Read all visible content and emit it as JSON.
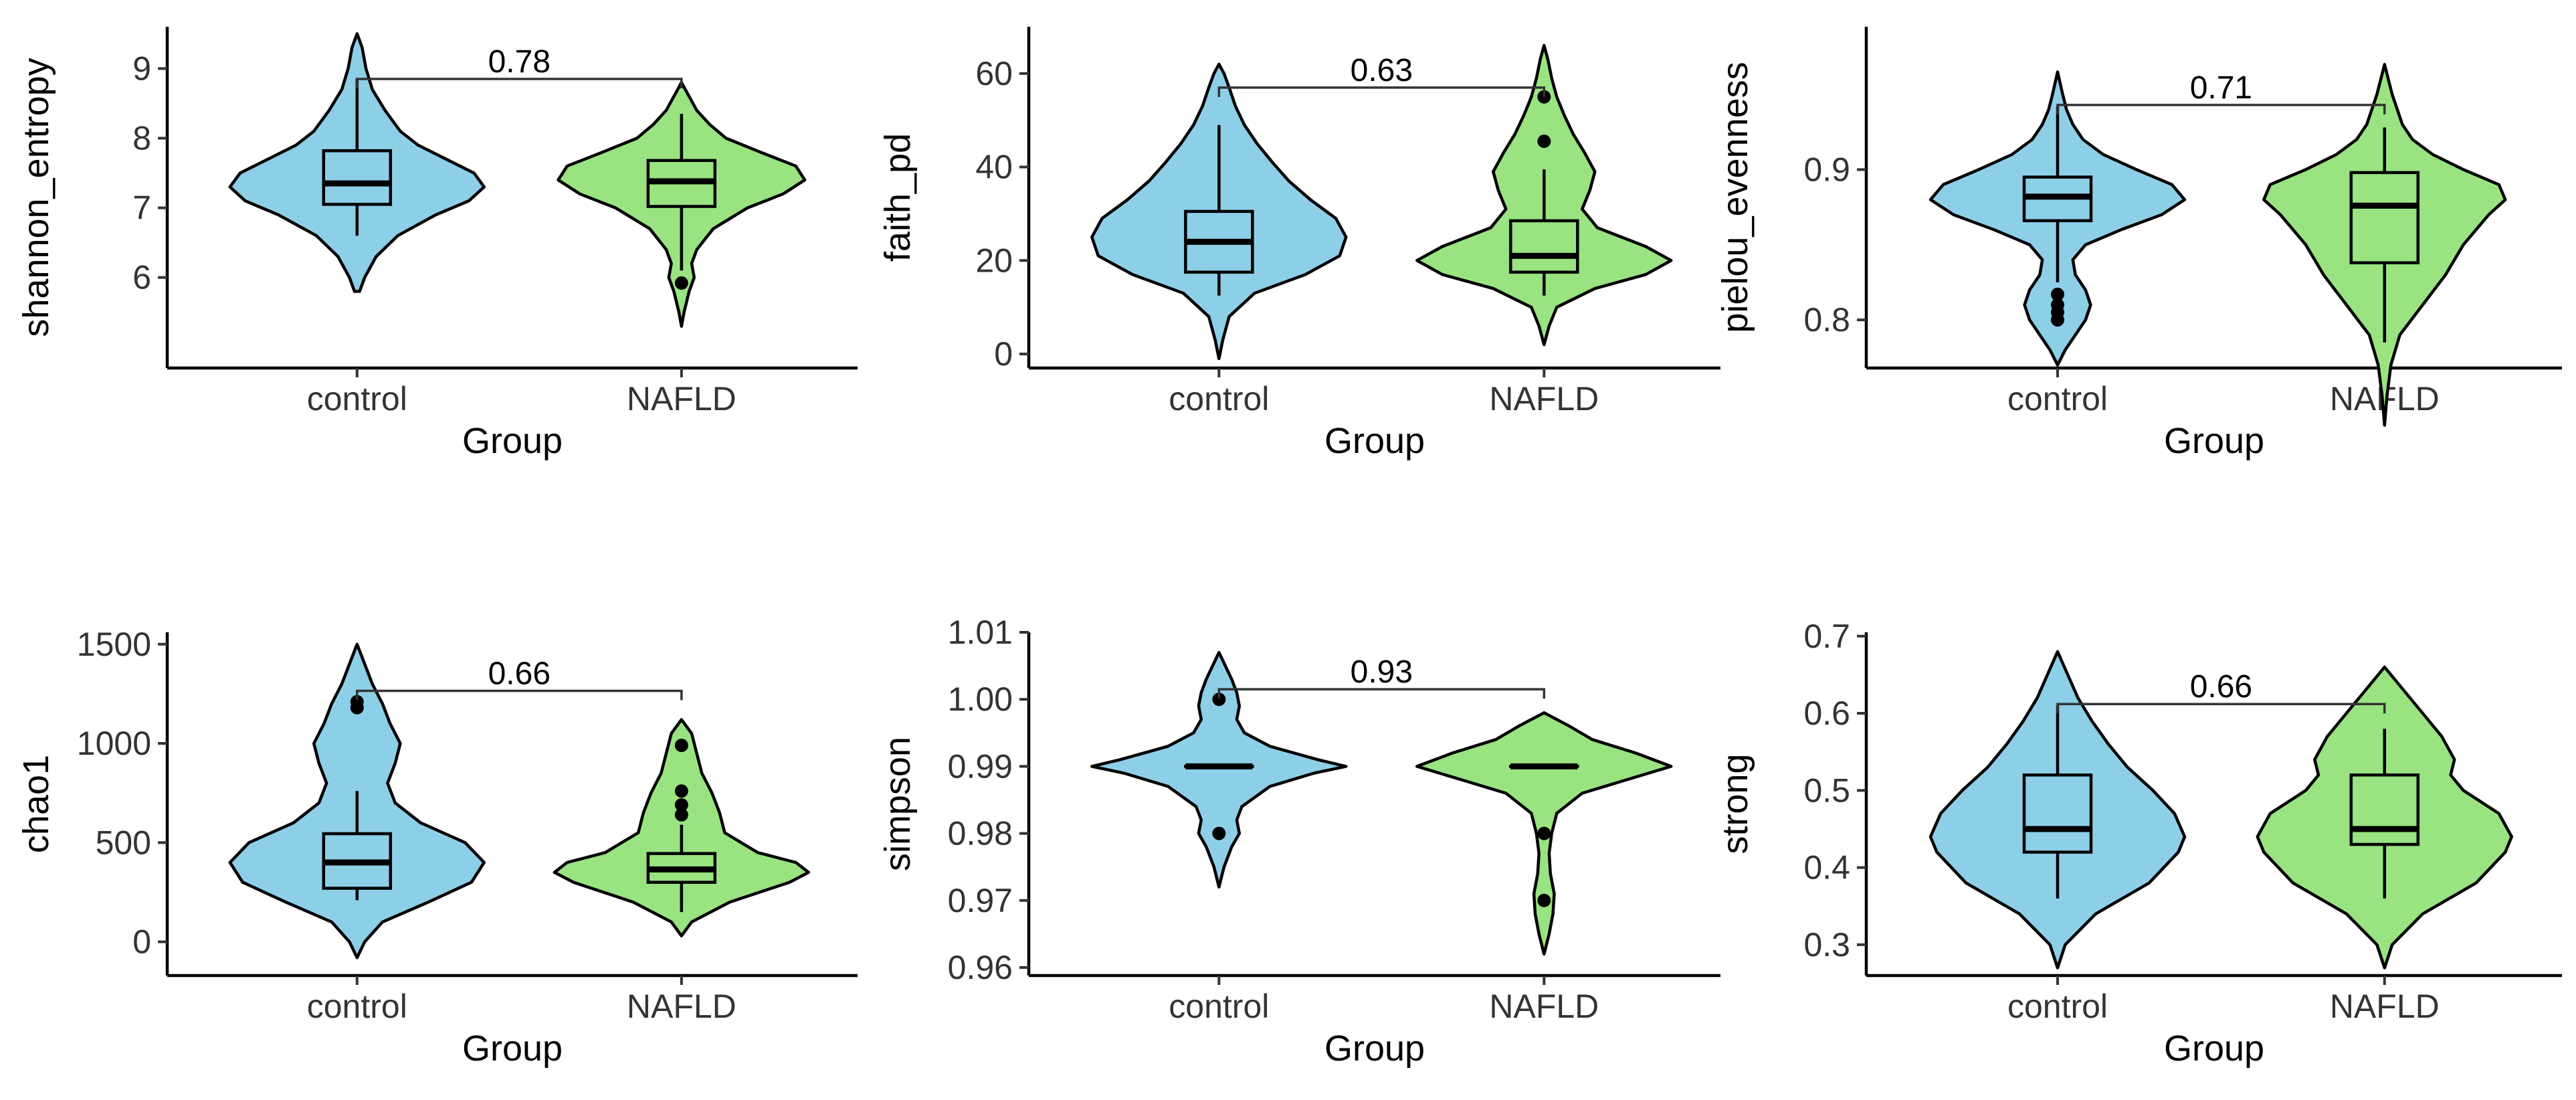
{
  "colors": {
    "control": "#8ecfe8",
    "NAFLD": "#99e481"
  },
  "chart_data": [
    {
      "type": "violin",
      "ylabel": "shannon_entropy",
      "xlabel": "Group",
      "categories": [
        "control",
        "NAFLD"
      ],
      "ylim": [
        4.7,
        9.6
      ],
      "yticks": [
        6,
        7,
        8,
        9
      ],
      "ytick_labels": [
        "6",
        "7",
        "8",
        "9"
      ],
      "pvalue": "0.78",
      "bracket_y": 8.85,
      "groups": [
        {
          "name": "control",
          "violin": [
            [
              5.8,
              0.02
            ],
            [
              6.0,
              0.06
            ],
            [
              6.3,
              0.15
            ],
            [
              6.6,
              0.32
            ],
            [
              6.9,
              0.62
            ],
            [
              7.1,
              0.88
            ],
            [
              7.3,
              1.0
            ],
            [
              7.5,
              0.92
            ],
            [
              7.7,
              0.7
            ],
            [
              7.9,
              0.48
            ],
            [
              8.1,
              0.34
            ],
            [
              8.4,
              0.22
            ],
            [
              8.7,
              0.12
            ],
            [
              9.0,
              0.07
            ],
            [
              9.3,
              0.04
            ],
            [
              9.5,
              0.0
            ]
          ],
          "box": {
            "min": 6.6,
            "q1": 7.05,
            "median": 7.35,
            "q3": 7.82,
            "max": 8.85
          },
          "outliers": []
        },
        {
          "name": "NAFLD",
          "violin": [
            [
              5.3,
              0.0
            ],
            [
              5.5,
              0.02
            ],
            [
              5.8,
              0.06
            ],
            [
              6.0,
              0.1
            ],
            [
              6.2,
              0.08
            ],
            [
              6.4,
              0.12
            ],
            [
              6.7,
              0.25
            ],
            [
              7.0,
              0.52
            ],
            [
              7.2,
              0.8
            ],
            [
              7.4,
              0.97
            ],
            [
              7.6,
              0.9
            ],
            [
              7.8,
              0.62
            ],
            [
              8.0,
              0.35
            ],
            [
              8.2,
              0.22
            ],
            [
              8.4,
              0.12
            ],
            [
              8.6,
              0.06
            ],
            [
              8.8,
              0.0
            ]
          ],
          "box": {
            "min": 6.1,
            "q1": 7.02,
            "median": 7.38,
            "q3": 7.68,
            "max": 8.35
          },
          "outliers": [
            5.92
          ]
        }
      ]
    },
    {
      "type": "violin",
      "ylabel": "faith_pd",
      "xlabel": "Group",
      "categories": [
        "control",
        "NAFLD"
      ],
      "ylim": [
        -3,
        70
      ],
      "yticks": [
        0,
        20,
        40,
        60
      ],
      "ytick_labels": [
        "0",
        "20",
        "40",
        "60"
      ],
      "pvalue": "0.63",
      "bracket_y": 57,
      "groups": [
        {
          "name": "control",
          "violin": [
            [
              -1,
              0.0
            ],
            [
              3,
              0.03
            ],
            [
              8,
              0.08
            ],
            [
              13,
              0.28
            ],
            [
              17,
              0.68
            ],
            [
              21,
              0.95
            ],
            [
              25,
              1.0
            ],
            [
              29,
              0.92
            ],
            [
              33,
              0.72
            ],
            [
              37,
              0.55
            ],
            [
              41,
              0.42
            ],
            [
              45,
              0.3
            ],
            [
              49,
              0.2
            ],
            [
              53,
              0.13
            ],
            [
              57,
              0.08
            ],
            [
              60,
              0.04
            ],
            [
              62,
              0.0
            ]
          ],
          "box": {
            "min": 12.5,
            "q1": 17.5,
            "median": 24.0,
            "q3": 30.5,
            "max": 49.0
          },
          "outliers": []
        },
        {
          "name": "NAFLD",
          "violin": [
            [
              2,
              0.0
            ],
            [
              6,
              0.04
            ],
            [
              10,
              0.1
            ],
            [
              14,
              0.4
            ],
            [
              17,
              0.8
            ],
            [
              20,
              1.0
            ],
            [
              23,
              0.8
            ],
            [
              27,
              0.42
            ],
            [
              31,
              0.3
            ],
            [
              35,
              0.36
            ],
            [
              39,
              0.4
            ],
            [
              43,
              0.32
            ],
            [
              47,
              0.23
            ],
            [
              51,
              0.16
            ],
            [
              55,
              0.1
            ],
            [
              59,
              0.06
            ],
            [
              63,
              0.03
            ],
            [
              66,
              0.0
            ]
          ],
          "box": {
            "min": 12.5,
            "q1": 17.5,
            "median": 21.0,
            "q3": 28.5,
            "max": 39.5
          },
          "outliers": [
            45.5,
            55.0
          ]
        }
      ]
    },
    {
      "type": "violin",
      "ylabel": "pielou_evenness",
      "xlabel": "Group",
      "categories": [
        "control",
        "NAFLD"
      ],
      "ylim": [
        0.768,
        0.995
      ],
      "yticks": [
        0.8,
        0.9
      ],
      "ytick_labels": [
        "0.8",
        "0.9"
      ],
      "pvalue": "0.71",
      "bracket_y": 0.943,
      "groups": [
        {
          "name": "control",
          "violin": [
            [
              0.77,
              0.0
            ],
            [
              0.78,
              0.06
            ],
            [
              0.79,
              0.14
            ],
            [
              0.8,
              0.22
            ],
            [
              0.81,
              0.26
            ],
            [
              0.82,
              0.22
            ],
            [
              0.83,
              0.14
            ],
            [
              0.84,
              0.12
            ],
            [
              0.85,
              0.22
            ],
            [
              0.86,
              0.5
            ],
            [
              0.87,
              0.82
            ],
            [
              0.88,
              1.0
            ],
            [
              0.89,
              0.9
            ],
            [
              0.9,
              0.62
            ],
            [
              0.91,
              0.36
            ],
            [
              0.92,
              0.2
            ],
            [
              0.93,
              0.12
            ],
            [
              0.94,
              0.07
            ],
            [
              0.95,
              0.04
            ],
            [
              0.965,
              0.0
            ]
          ],
          "box": {
            "min": 0.825,
            "q1": 0.866,
            "median": 0.882,
            "q3": 0.895,
            "max": 0.942
          },
          "outliers": [
            0.8,
            0.805,
            0.81,
            0.817
          ]
        },
        {
          "name": "NAFLD",
          "violin": [
            [
              0.73,
              0.0
            ],
            [
              0.75,
              0.02
            ],
            [
              0.77,
              0.05
            ],
            [
              0.79,
              0.12
            ],
            [
              0.81,
              0.3
            ],
            [
              0.83,
              0.48
            ],
            [
              0.85,
              0.62
            ],
            [
              0.87,
              0.82
            ],
            [
              0.88,
              0.95
            ],
            [
              0.89,
              0.9
            ],
            [
              0.9,
              0.62
            ],
            [
              0.91,
              0.38
            ],
            [
              0.92,
              0.22
            ],
            [
              0.93,
              0.14
            ],
            [
              0.95,
              0.06
            ],
            [
              0.97,
              0.0
            ]
          ],
          "box": {
            "min": 0.785,
            "q1": 0.838,
            "median": 0.876,
            "q3": 0.898,
            "max": 0.928
          },
          "outliers": []
        }
      ]
    },
    {
      "type": "violin",
      "ylabel": "chao1",
      "xlabel": "Group",
      "categories": [
        "control",
        "NAFLD"
      ],
      "ylim": [
        -170,
        1560
      ],
      "yticks": [
        0,
        500,
        1000,
        1500
      ],
      "ytick_labels": [
        "0",
        "500",
        "1000",
        "1500"
      ],
      "pvalue": "0.66",
      "bracket_y": 1265,
      "groups": [
        {
          "name": "control",
          "violin": [
            [
              -80,
              0.0
            ],
            [
              0,
              0.06
            ],
            [
              100,
              0.2
            ],
            [
              200,
              0.56
            ],
            [
              300,
              0.9
            ],
            [
              400,
              1.0
            ],
            [
              500,
              0.85
            ],
            [
              600,
              0.5
            ],
            [
              700,
              0.3
            ],
            [
              800,
              0.24
            ],
            [
              900,
              0.3
            ],
            [
              1000,
              0.34
            ],
            [
              1100,
              0.26
            ],
            [
              1200,
              0.2
            ],
            [
              1300,
              0.12
            ],
            [
              1400,
              0.06
            ],
            [
              1500,
              0.0
            ]
          ],
          "box": {
            "min": 210,
            "q1": 270,
            "median": 400,
            "q3": 545,
            "max": 760
          },
          "outliers": [
            1180,
            1210
          ]
        },
        {
          "name": "NAFLD",
          "violin": [
            [
              30,
              0.0
            ],
            [
              100,
              0.08
            ],
            [
              200,
              0.38
            ],
            [
              300,
              0.85
            ],
            [
              350,
              1.0
            ],
            [
              400,
              0.9
            ],
            [
              450,
              0.6
            ],
            [
              550,
              0.34
            ],
            [
              650,
              0.3
            ],
            [
              750,
              0.24
            ],
            [
              850,
              0.16
            ],
            [
              950,
              0.12
            ],
            [
              1050,
              0.08
            ],
            [
              1120,
              0.0
            ]
          ],
          "box": {
            "min": 150,
            "q1": 300,
            "median": 365,
            "q3": 445,
            "max": 590
          },
          "outliers": [
            640,
            690,
            760,
            990
          ]
        }
      ]
    },
    {
      "type": "violin",
      "ylabel": "simpson",
      "xlabel": "Group",
      "categories": [
        "control",
        "NAFLD"
      ],
      "ylim": [
        0.9588,
        1.01
      ],
      "yticks": [
        0.96,
        0.97,
        0.98,
        0.99,
        1.0,
        1.01
      ],
      "ytick_labels": [
        "0.96",
        "0.97",
        "0.98",
        "0.99",
        "1.00",
        "1.01"
      ],
      "pvalue": "0.93",
      "bracket_y": 1.0015,
      "groups": [
        {
          "name": "control",
          "violin": [
            [
              0.972,
              0.0
            ],
            [
              0.975,
              0.04
            ],
            [
              0.978,
              0.1
            ],
            [
              0.98,
              0.16
            ],
            [
              0.982,
              0.14
            ],
            [
              0.984,
              0.18
            ],
            [
              0.987,
              0.4
            ],
            [
              0.989,
              0.75
            ],
            [
              0.99,
              1.0
            ],
            [
              0.991,
              0.78
            ],
            [
              0.993,
              0.4
            ],
            [
              0.995,
              0.2
            ],
            [
              0.997,
              0.14
            ],
            [
              0.999,
              0.16
            ],
            [
              1.001,
              0.14
            ],
            [
              1.003,
              0.1
            ],
            [
              1.005,
              0.05
            ],
            [
              1.007,
              0.0
            ]
          ],
          "box": {
            "min": 0.99,
            "q1": 0.99,
            "median": 0.99,
            "q3": 0.99,
            "max": 0.99
          },
          "outliers": [
            0.98,
            1.0
          ]
        },
        {
          "name": "NAFLD",
          "violin": [
            [
              0.962,
              0.0
            ],
            [
              0.965,
              0.04
            ],
            [
              0.968,
              0.07
            ],
            [
              0.971,
              0.08
            ],
            [
              0.974,
              0.05
            ],
            [
              0.977,
              0.04
            ],
            [
              0.98,
              0.06
            ],
            [
              0.983,
              0.1
            ],
            [
              0.986,
              0.3
            ],
            [
              0.988,
              0.65
            ],
            [
              0.99,
              1.0
            ],
            [
              0.992,
              0.72
            ],
            [
              0.994,
              0.38
            ],
            [
              0.996,
              0.2
            ],
            [
              0.998,
              0.0
            ]
          ],
          "box": {
            "min": 0.99,
            "q1": 0.99,
            "median": 0.99,
            "q3": 0.99,
            "max": 0.99
          },
          "outliers": [
            0.97,
            0.98
          ]
        }
      ]
    },
    {
      "type": "violin",
      "ylabel": "strong",
      "xlabel": "Group",
      "categories": [
        "control",
        "NAFLD"
      ],
      "ylim": [
        0.26,
        0.705
      ],
      "yticks": [
        0.3,
        0.4,
        0.5,
        0.6,
        0.7
      ],
      "ytick_labels": [
        "0.3",
        "0.4",
        "0.5",
        "0.6",
        "0.7"
      ],
      "pvalue": "0.66",
      "bracket_y": 0.612,
      "groups": [
        {
          "name": "control",
          "violin": [
            [
              0.27,
              0.0
            ],
            [
              0.3,
              0.06
            ],
            [
              0.34,
              0.3
            ],
            [
              0.38,
              0.72
            ],
            [
              0.42,
              0.95
            ],
            [
              0.44,
              1.0
            ],
            [
              0.47,
              0.92
            ],
            [
              0.5,
              0.75
            ],
            [
              0.53,
              0.55
            ],
            [
              0.56,
              0.4
            ],
            [
              0.59,
              0.27
            ],
            [
              0.62,
              0.16
            ],
            [
              0.65,
              0.08
            ],
            [
              0.68,
              0.0
            ]
          ],
          "box": {
            "min": 0.36,
            "q1": 0.42,
            "median": 0.45,
            "q3": 0.52,
            "max": 0.61
          },
          "outliers": []
        },
        {
          "name": "NAFLD",
          "violin": [
            [
              0.27,
              0.0
            ],
            [
              0.3,
              0.06
            ],
            [
              0.34,
              0.3
            ],
            [
              0.38,
              0.72
            ],
            [
              0.42,
              0.95
            ],
            [
              0.44,
              1.0
            ],
            [
              0.47,
              0.9
            ],
            [
              0.5,
              0.62
            ],
            [
              0.52,
              0.52
            ],
            [
              0.54,
              0.55
            ],
            [
              0.57,
              0.45
            ],
            [
              0.6,
              0.3
            ],
            [
              0.63,
              0.15
            ],
            [
              0.66,
              0.0
            ]
          ],
          "box": {
            "min": 0.36,
            "q1": 0.43,
            "median": 0.45,
            "q3": 0.52,
            "max": 0.58
          },
          "outliers": []
        }
      ]
    }
  ]
}
